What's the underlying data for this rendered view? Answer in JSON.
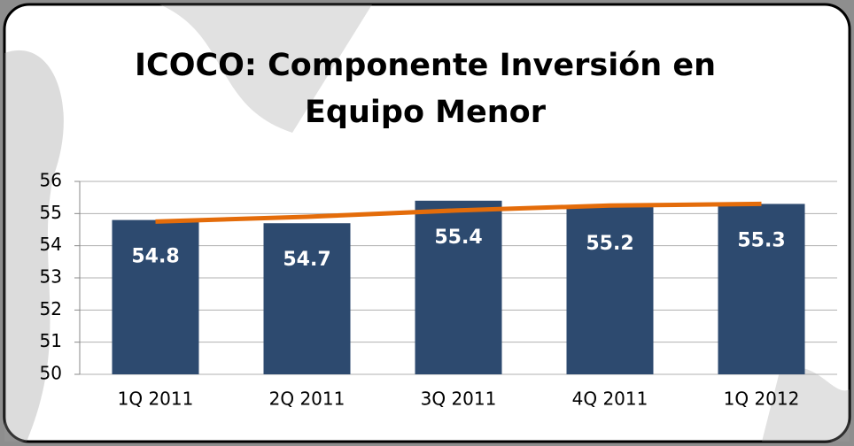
{
  "chart_data": {
    "type": "bar",
    "title": "ICOCO: Componente Inversión en Equipo Menor",
    "categories": [
      "1Q 2011",
      "2Q 2011",
      "3Q 2011",
      "4Q 2011",
      "1Q 2012"
    ],
    "values": [
      54.8,
      54.7,
      55.4,
      55.2,
      55.3
    ],
    "color": "#2d4a6f",
    "trend": {
      "color": "#e46c0a",
      "values": [
        54.75,
        54.9,
        55.1,
        55.25,
        55.3
      ]
    },
    "ylim": [
      50,
      56
    ],
    "yticks": [
      50,
      51,
      52,
      53,
      54,
      55,
      56
    ],
    "grid": true
  }
}
